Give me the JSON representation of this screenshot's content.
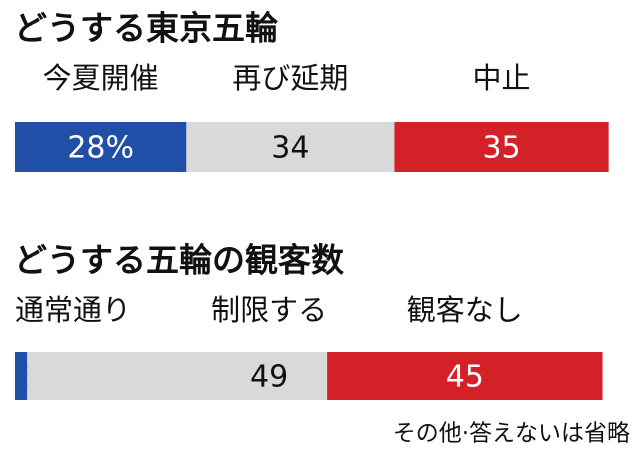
{
  "chart_data": [
    {
      "type": "stacked-bar",
      "title": "どうする東京五輪",
      "categories": [
        "今夏開催",
        "再び延期",
        "中止"
      ],
      "values": [
        28,
        34,
        35
      ],
      "value_labels": [
        "28%",
        "34",
        "35"
      ],
      "colors": [
        "#1f4fa6",
        "#d9d9d9",
        "#d42027"
      ]
    },
    {
      "type": "stacked-bar",
      "title": "どうする五輪の観客数",
      "categories": [
        "通常通り",
        "制限する",
        "観客なし"
      ],
      "values": [
        2,
        49,
        45
      ],
      "colors": [
        "#1f4fa6",
        "#d9d9d9",
        "#d42027"
      ],
      "note": "その他·答えないは省略"
    }
  ]
}
